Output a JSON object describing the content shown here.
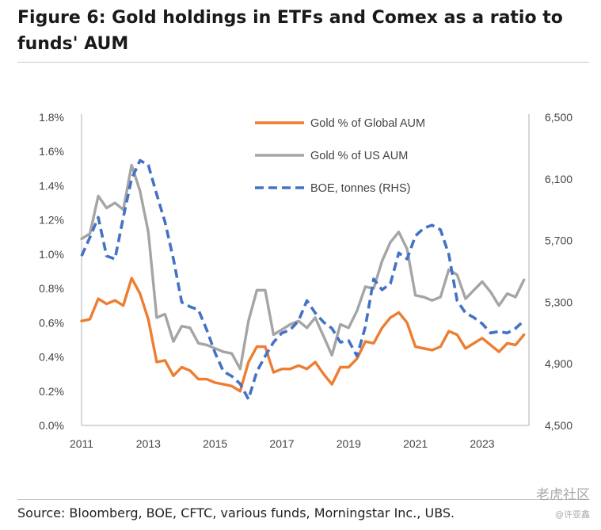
{
  "figure": {
    "title": "Figure 6: Gold holdings in ETFs and Comex as a ratio to funds' AUM",
    "source": "Source: Bloomberg, BOE, CFTC, various funds, Morningstar Inc., UBS.",
    "watermark_main": "老虎社区",
    "watermark_sub": "@许亚鑫"
  },
  "chart_data": {
    "type": "line",
    "xlim": [
      2011,
      2024.4
    ],
    "x_ticks": [
      "2011",
      "2013",
      "2015",
      "2017",
      "2019",
      "2021",
      "2023"
    ],
    "y_left": {
      "lim": [
        0,
        1.8
      ],
      "ticks": [
        "0.0%",
        "0.2%",
        "0.4%",
        "0.6%",
        "0.8%",
        "1.0%",
        "1.2%",
        "1.4%",
        "1.6%",
        "1.8%"
      ]
    },
    "y_right": {
      "lim": [
        4500,
        6500
      ],
      "ticks": [
        "4,500",
        "4,900",
        "5,300",
        "5,700",
        "6,100",
        "6,500"
      ]
    },
    "grid": false,
    "legend": "top-center",
    "series": [
      {
        "name": "Gold % of Global AUM",
        "axis": "left",
        "color": "#ed7d31",
        "dash": "solid",
        "x": [
          2011.0,
          2011.25,
          2011.5,
          2011.75,
          2012.0,
          2012.25,
          2012.5,
          2012.75,
          2013.0,
          2013.25,
          2013.5,
          2013.75,
          2014.0,
          2014.25,
          2014.5,
          2014.75,
          2015.0,
          2015.25,
          2015.5,
          2015.75,
          2016.0,
          2016.25,
          2016.5,
          2016.75,
          2017.0,
          2017.25,
          2017.5,
          2017.75,
          2018.0,
          2018.25,
          2018.5,
          2018.75,
          2019.0,
          2019.25,
          2019.5,
          2019.75,
          2020.0,
          2020.25,
          2020.5,
          2020.75,
          2021.0,
          2021.25,
          2021.5,
          2021.75,
          2022.0,
          2022.25,
          2022.5,
          2022.75,
          2023.0,
          2023.25,
          2023.5,
          2023.75,
          2024.0,
          2024.25
        ],
        "values": [
          0.61,
          0.62,
          0.74,
          0.71,
          0.73,
          0.7,
          0.86,
          0.77,
          0.62,
          0.37,
          0.38,
          0.29,
          0.34,
          0.32,
          0.27,
          0.27,
          0.25,
          0.24,
          0.23,
          0.2,
          0.37,
          0.46,
          0.46,
          0.31,
          0.33,
          0.33,
          0.35,
          0.33,
          0.37,
          0.3,
          0.24,
          0.34,
          0.34,
          0.39,
          0.49,
          0.48,
          0.57,
          0.63,
          0.66,
          0.6,
          0.46,
          0.45,
          0.44,
          0.46,
          0.55,
          0.53,
          0.45,
          0.48,
          0.51,
          0.47,
          0.43,
          0.48,
          0.47,
          0.53
        ]
      },
      {
        "name": "Gold % of US AUM",
        "axis": "left",
        "color": "#a5a5a5",
        "dash": "solid",
        "x": [
          2011.0,
          2011.25,
          2011.5,
          2011.75,
          2012.0,
          2012.25,
          2012.5,
          2012.75,
          2013.0,
          2013.25,
          2013.5,
          2013.75,
          2014.0,
          2014.25,
          2014.5,
          2014.75,
          2015.0,
          2015.25,
          2015.5,
          2015.75,
          2016.0,
          2016.25,
          2016.5,
          2016.75,
          2017.0,
          2017.25,
          2017.5,
          2017.75,
          2018.0,
          2018.25,
          2018.5,
          2018.75,
          2019.0,
          2019.25,
          2019.5,
          2019.75,
          2020.0,
          2020.25,
          2020.5,
          2020.75,
          2021.0,
          2021.25,
          2021.5,
          2021.75,
          2022.0,
          2022.25,
          2022.5,
          2022.75,
          2023.0,
          2023.25,
          2023.5,
          2023.75,
          2024.0,
          2024.25
        ],
        "values": [
          1.09,
          1.12,
          1.34,
          1.27,
          1.3,
          1.26,
          1.52,
          1.37,
          1.13,
          0.63,
          0.65,
          0.49,
          0.58,
          0.57,
          0.48,
          0.47,
          0.45,
          0.43,
          0.42,
          0.33,
          0.61,
          0.79,
          0.79,
          0.53,
          0.56,
          0.59,
          0.61,
          0.57,
          0.63,
          0.52,
          0.41,
          0.59,
          0.57,
          0.67,
          0.81,
          0.8,
          0.96,
          1.07,
          1.13,
          1.03,
          0.76,
          0.75,
          0.73,
          0.75,
          0.91,
          0.88,
          0.74,
          0.79,
          0.84,
          0.78,
          0.7,
          0.77,
          0.75,
          0.85
        ]
      },
      {
        "name": "BOE, tonnes (RHS)",
        "axis": "right",
        "color": "#4472c4",
        "dash": "dashed",
        "x": [
          2011.0,
          2011.25,
          2011.5,
          2011.75,
          2012.0,
          2012.25,
          2012.5,
          2012.75,
          2013.0,
          2013.25,
          2013.5,
          2013.75,
          2014.0,
          2014.25,
          2014.5,
          2014.75,
          2015.0,
          2015.25,
          2015.5,
          2015.75,
          2016.0,
          2016.25,
          2016.5,
          2016.75,
          2017.0,
          2017.25,
          2017.5,
          2017.75,
          2018.0,
          2018.25,
          2018.5,
          2018.75,
          2019.0,
          2019.25,
          2019.5,
          2019.75,
          2020.0,
          2020.25,
          2020.5,
          2020.75,
          2021.0,
          2021.25,
          2021.5,
          2021.75,
          2022.0,
          2022.25,
          2022.5,
          2022.75,
          2023.0,
          2023.25,
          2023.5,
          2023.75,
          2024.0,
          2024.25
        ],
        "values": [
          5.6,
          5.72,
          5.85,
          5.6,
          5.58,
          5.85,
          6.1,
          6.22,
          6.19,
          6.0,
          5.82,
          5.58,
          5.3,
          5.27,
          5.25,
          5.12,
          4.97,
          4.85,
          4.82,
          4.77,
          4.67,
          4.85,
          4.95,
          5.04,
          5.1,
          5.12,
          5.18,
          5.31,
          5.23,
          5.17,
          5.13,
          5.04,
          5.05,
          4.95,
          5.14,
          5.45,
          5.38,
          5.42,
          5.62,
          5.58,
          5.73,
          5.78,
          5.8,
          5.77,
          5.61,
          5.31,
          5.23,
          5.2,
          5.16,
          5.1,
          5.11,
          5.1,
          5.13,
          5.18
        ]
      }
    ]
  }
}
